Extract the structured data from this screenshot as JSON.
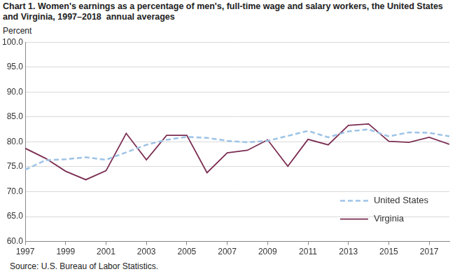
{
  "chart_data": {
    "type": "line",
    "title": "Chart 1. Women's earnings as a percentage of men's, full-time wage and salary workers, the United States and Virginia, 1997–2018  annual averages",
    "y_label": "Percent",
    "source": "Source: U.S. Bureau of Labor Statistics.",
    "x": [
      1997,
      1998,
      1999,
      2000,
      2001,
      2002,
      2003,
      2004,
      2005,
      2006,
      2007,
      2008,
      2009,
      2010,
      2011,
      2012,
      2013,
      2014,
      2015,
      2016,
      2017,
      2018
    ],
    "xlim": [
      1997,
      2018
    ],
    "xticks": [
      1997,
      1999,
      2001,
      2003,
      2005,
      2007,
      2009,
      2011,
      2013,
      2015,
      2017
    ],
    "ylim": [
      60,
      100
    ],
    "yticks": [
      {
        "value": 60,
        "label": "60.0"
      },
      {
        "value": 65,
        "label": "65.0"
      },
      {
        "value": 70,
        "label": "70.0"
      },
      {
        "value": 75,
        "label": "75.0"
      },
      {
        "value": 80,
        "label": "80.0"
      },
      {
        "value": 85,
        "label": "85.0"
      },
      {
        "value": 90,
        "label": "90.0"
      },
      {
        "value": 95,
        "label": "95.0"
      },
      {
        "value": 100,
        "label": "100.0"
      }
    ],
    "grid": "y",
    "legend": "lower right",
    "series": [
      {
        "name": "United States",
        "color": "#9dc3e6",
        "line_style": "dashed",
        "values": [
          74.4,
          76.3,
          76.5,
          76.9,
          76.4,
          77.9,
          79.4,
          80.4,
          81.0,
          80.8,
          80.2,
          79.9,
          80.2,
          81.2,
          82.2,
          80.9,
          82.1,
          82.5,
          81.1,
          81.9,
          81.8,
          81.1
        ]
      },
      {
        "name": "Virginia",
        "color": "#7b2d52",
        "line_style": "solid",
        "values": [
          78.7,
          76.7,
          74.1,
          72.4,
          74.2,
          81.7,
          76.4,
          81.3,
          81.3,
          73.8,
          77.8,
          78.3,
          80.4,
          75.1,
          80.5,
          79.4,
          83.3,
          83.6,
          80.1,
          79.9,
          80.9,
          79.5
        ]
      }
    ]
  }
}
